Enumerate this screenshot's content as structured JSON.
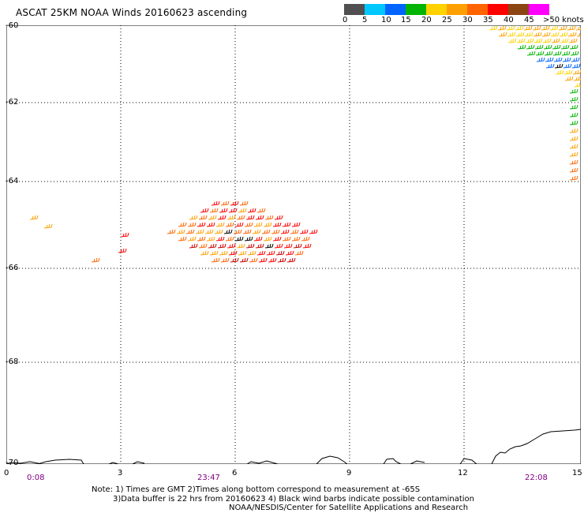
{
  "title": "ASCAT 25KM NOAA Winds 20160623 ascending",
  "colorbar": {
    "colors": [
      "#505050",
      "#00c8ff",
      "#0064ff",
      "#00b400",
      "#ffd200",
      "#ffa000",
      "#ff6400",
      "#ff0000",
      "#8b4513",
      "#ff00ff",
      "#8000a0",
      "#400080"
    ],
    "labels": [
      "0",
      "5",
      "10",
      "15",
      "20",
      "25",
      "30",
      "35",
      "40",
      "45",
      ">50 knots"
    ]
  },
  "axes": {
    "y_ticks": [
      "-60",
      "-62",
      "-64",
      "-66",
      "-68",
      "-70"
    ],
    "x_ticks": [
      "0",
      "3",
      "6",
      "9",
      "12",
      "15"
    ],
    "time_labels": [
      "0:08",
      "23:47",
      "22:08"
    ]
  },
  "notes": {
    "line1": "Note: 1) Times are GMT 2)Times along bottom correspond to measurement at -65S",
    "line2": "3)Data buffer is 22 hrs from 20160623 4) Black wind barbs indicate possible contamination",
    "line3": "NOAA/NESDIS/Center for Satellite Applications and Research"
  },
  "map": {
    "grid_style": "dotted",
    "swath_main_colors": [
      "#ff6400",
      "#ff0000",
      "#ffa000",
      "#c80000",
      "#000000"
    ],
    "swath_ne_colors": [
      "#ffa000",
      "#ffd200",
      "#00b400",
      "#0064ff",
      "#000000",
      "#ff6400"
    ]
  }
}
